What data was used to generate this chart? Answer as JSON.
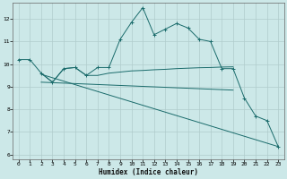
{
  "title": "",
  "xlabel": "Humidex (Indice chaleur)",
  "ylabel": "",
  "bg_color": "#cce8e8",
  "line_color": "#1a6b6b",
  "grid_color": "#b0cccc",
  "xlim": [
    -0.5,
    23.5
  ],
  "ylim": [
    5.8,
    12.7
  ],
  "xticks": [
    0,
    1,
    2,
    3,
    4,
    5,
    6,
    7,
    8,
    9,
    10,
    11,
    12,
    13,
    14,
    15,
    16,
    17,
    18,
    19,
    20,
    21,
    22,
    23
  ],
  "yticks": [
    6,
    7,
    8,
    9,
    10,
    11,
    12
  ],
  "series_main": {
    "x": [
      0,
      1,
      2,
      3,
      4,
      5,
      6,
      7,
      8,
      9,
      10,
      11,
      12,
      13,
      14,
      15,
      16,
      17,
      18,
      19,
      20,
      21,
      22,
      23
    ],
    "y": [
      10.2,
      10.2,
      9.6,
      9.2,
      9.8,
      9.85,
      9.5,
      9.85,
      9.85,
      11.1,
      11.85,
      12.5,
      11.3,
      11.55,
      11.8,
      11.6,
      11.1,
      11.0,
      9.8,
      9.8,
      8.5,
      7.7,
      7.5,
      6.35
    ]
  },
  "series_flat": {
    "x": [
      2,
      3,
      4,
      5,
      6,
      7,
      8,
      9,
      10,
      11,
      12,
      13,
      14,
      15,
      16,
      17,
      18,
      19
    ],
    "y": [
      9.6,
      9.2,
      9.8,
      9.85,
      9.5,
      9.5,
      9.6,
      9.65,
      9.7,
      9.72,
      9.75,
      9.77,
      9.8,
      9.82,
      9.84,
      9.85,
      9.87,
      9.88
    ]
  },
  "series_diag": {
    "x": [
      2,
      23
    ],
    "y": [
      9.55,
      6.35
    ]
  },
  "series_slope": {
    "x": [
      2,
      19
    ],
    "y": [
      9.2,
      8.85
    ]
  }
}
